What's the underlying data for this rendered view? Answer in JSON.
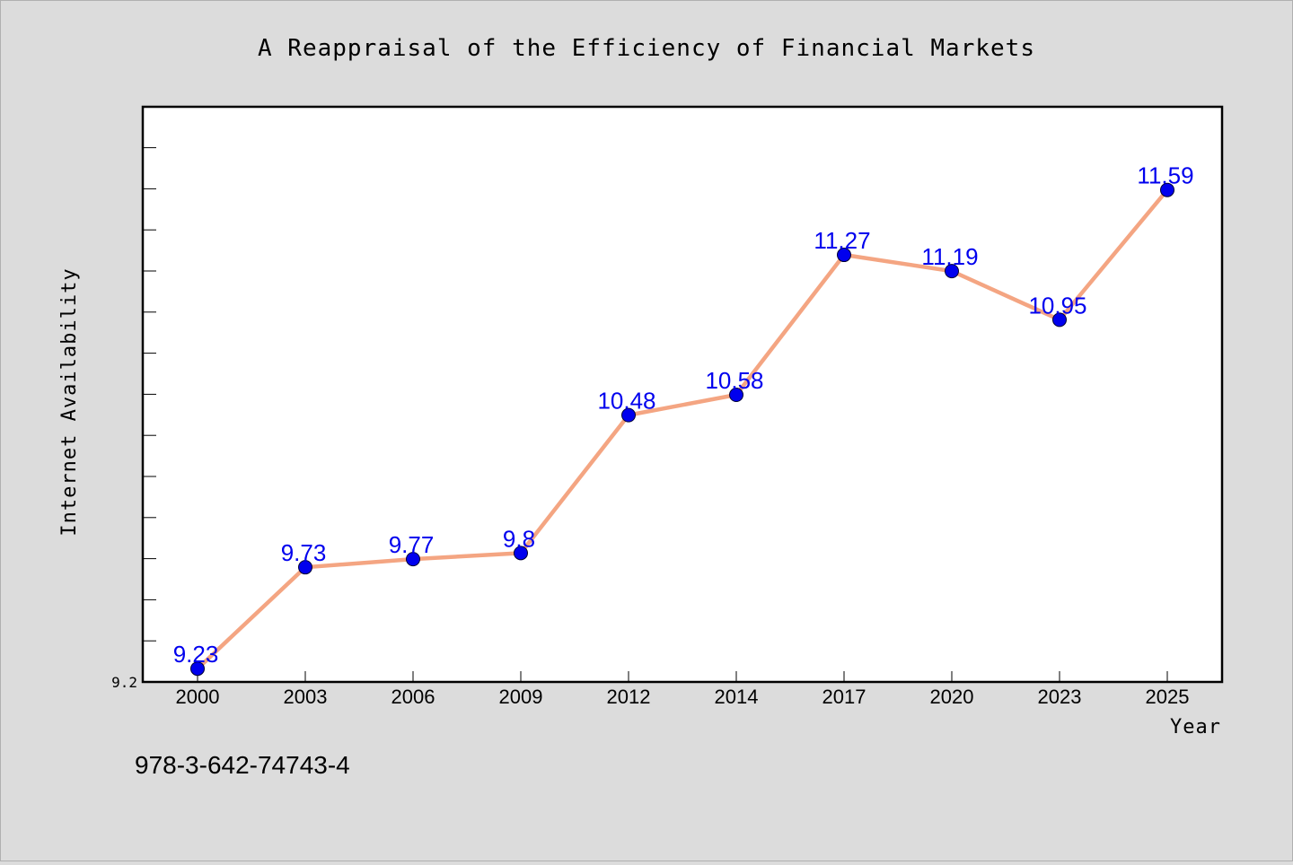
{
  "chart_data": {
    "type": "line",
    "title": "A Reappraisal of the Efficiency of Financial Markets",
    "xlabel": "Year",
    "ylabel": "Internet Availability",
    "categories": [
      "2000",
      "2003",
      "2006",
      "2009",
      "2012",
      "2014",
      "2017",
      "2020",
      "2023",
      "2025"
    ],
    "series": [
      {
        "values": [
          9.23,
          9.73,
          9.77,
          9.8,
          10.48,
          10.58,
          11.27,
          11.19,
          10.95,
          11.59
        ]
      }
    ],
    "data_labels": [
      "9.23",
      "9.73",
      "9.77",
      "9.8",
      "10.48",
      "10.58",
      "11.27",
      "11.19",
      "10.95",
      "11.59"
    ],
    "ytick_labels": [
      "9.2"
    ],
    "ylim": [
      9.2,
      12.0
    ],
    "grid": false,
    "legend": "none"
  },
  "footer": {
    "isbn": "978-3-642-74743-4"
  },
  "colors": {
    "background": "#dcdcdc",
    "plot_background": "#ffffff",
    "line": "#f4a582",
    "marker": "#0000ee",
    "data_label": "#0000ee"
  }
}
